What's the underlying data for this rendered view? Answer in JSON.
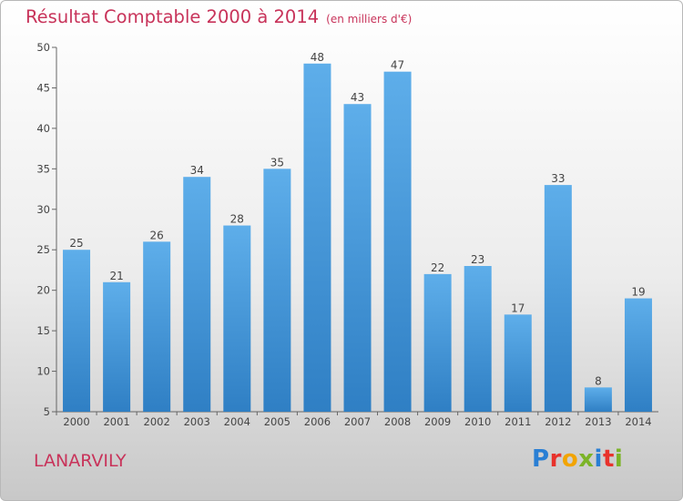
{
  "header": {
    "title": "Résultat Comptable 2000 à 2014",
    "subtitle": "(en milliers d'€)"
  },
  "commune": "LANARVILY",
  "logo": {
    "text": "Proxiti",
    "letter_colors": [
      "#2a7fd4",
      "#e8322c",
      "#f2a400",
      "#7cb428",
      "#2a7fd4",
      "#e8322c",
      "#7cb428"
    ]
  },
  "colors": {
    "bar_top": "#5eaeea",
    "bar_bottom": "#2f7fc4",
    "title": "#c8335a"
  },
  "chart_data": {
    "type": "bar",
    "categories": [
      "2000",
      "2001",
      "2002",
      "2003",
      "2004",
      "2005",
      "2006",
      "2007",
      "2008",
      "2009",
      "2010",
      "2011",
      "2012",
      "2013",
      "2014"
    ],
    "values": [
      25,
      21,
      26,
      34,
      28,
      35,
      48,
      43,
      47,
      22,
      23,
      17,
      33,
      8,
      19
    ],
    "ylim": [
      5,
      50
    ],
    "yticks": [
      5,
      10,
      15,
      20,
      25,
      30,
      35,
      40,
      45,
      50
    ],
    "grid": false
  }
}
